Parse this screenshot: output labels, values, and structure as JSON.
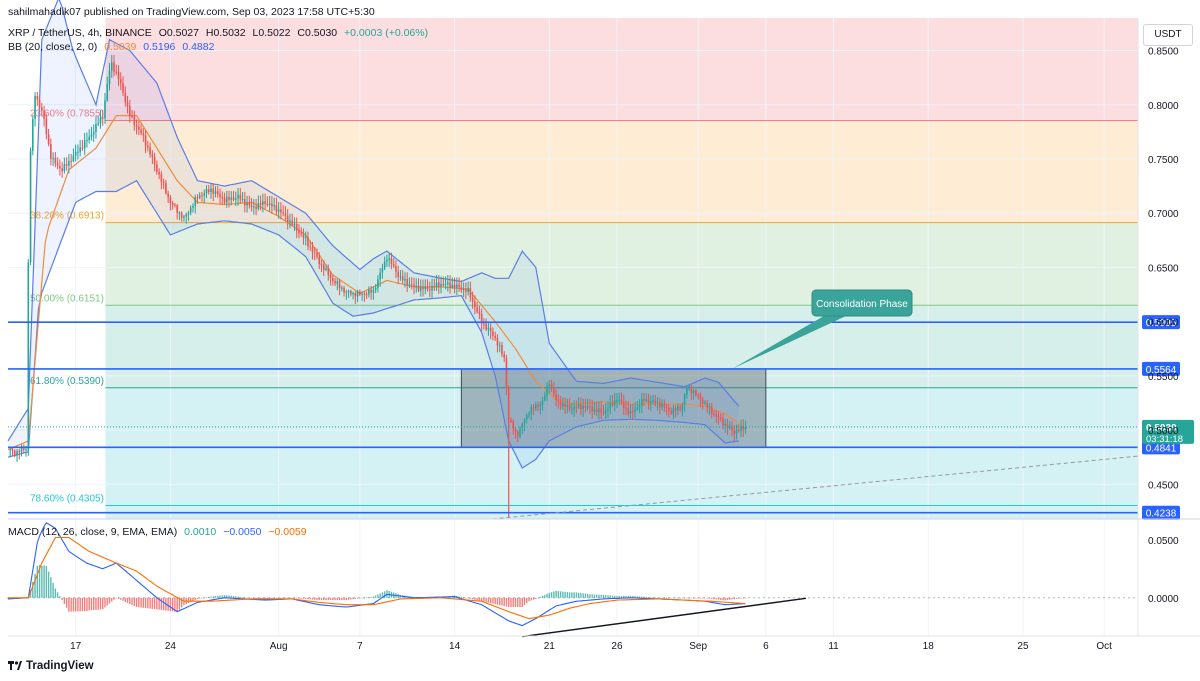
{
  "publisher_line": "sahilmahadik07 published on TradingView.com, Sep 03, 2023 17:58 UTC+5:30",
  "legend": {
    "symbol": "XRP / TetherUS, 4h, BINANCE",
    "ohlc": [
      "O0.5027",
      "H0.5032",
      "L0.5022",
      "C0.5030",
      "+0.0003 (+0.06%)"
    ],
    "bb_label": "BB (20, close, 2, 0)",
    "bb_values": [
      "0.5039",
      "0.5196",
      "0.4882"
    ],
    "macd_label": "MACD (12, 26, close, 9, EMA, EMA)",
    "macd_values": [
      "0.0010",
      "−0.0050",
      "−0.0059"
    ]
  },
  "currency_button": "USDT",
  "branding": "TradingView",
  "colors": {
    "up": "#26a69a",
    "down": "#ef5350",
    "support_line": "#2962ff",
    "bb_band": "#5b7ee5",
    "bb_basis": "#f08c3a",
    "macd_line": "#2962ff",
    "signal_line": "#ff6d00",
    "callout": "#3aa39a"
  },
  "chart_data": {
    "type": "candlestick",
    "symbol": "XRP / TetherUS",
    "interval": "4h",
    "exchange": "BINANCE",
    "price_axis": {
      "ticks": [
        0.85,
        0.8,
        0.75,
        0.7,
        0.65,
        0.6,
        0.55,
        0.5,
        0.45
      ],
      "tick_labels": [
        "0.8500",
        "0.8000",
        "0.7500",
        "0.7000",
        "0.6500",
        "0.6000",
        "0.5500",
        "0.5000",
        "0.4500"
      ],
      "range": [
        0.418,
        0.88
      ]
    },
    "time_axis": {
      "labels": [
        "17",
        "24",
        "Aug",
        "7",
        "14",
        "21",
        "26",
        "Sep",
        "6",
        "11",
        "18",
        "25",
        "Oct"
      ],
      "days": [
        17,
        24,
        32,
        38,
        45,
        52,
        57,
        63,
        68,
        73,
        80,
        87,
        93
      ],
      "start_day": 12,
      "end_day": 95.5
    },
    "price_waypoints": [
      [
        12.0,
        0.482
      ],
      [
        12.5,
        0.479
      ],
      [
        13.4,
        0.484
      ],
      [
        13.55,
        0.74
      ],
      [
        14.0,
        0.81
      ],
      [
        14.6,
        0.79
      ],
      [
        15.2,
        0.75
      ],
      [
        16.0,
        0.74
      ],
      [
        17.0,
        0.755
      ],
      [
        18.0,
        0.77
      ],
      [
        19.0,
        0.79
      ],
      [
        19.6,
        0.84
      ],
      [
        20.3,
        0.82
      ],
      [
        21.0,
        0.79
      ],
      [
        22.0,
        0.77
      ],
      [
        23.0,
        0.74
      ],
      [
        24.0,
        0.71
      ],
      [
        25.0,
        0.695
      ],
      [
        26.0,
        0.715
      ],
      [
        27.0,
        0.722
      ],
      [
        28.0,
        0.712
      ],
      [
        29.0,
        0.715
      ],
      [
        30.0,
        0.705
      ],
      [
        31.0,
        0.71
      ],
      [
        32.0,
        0.703
      ],
      [
        33.0,
        0.69
      ],
      [
        34.0,
        0.675
      ],
      [
        35.0,
        0.655
      ],
      [
        36.0,
        0.638
      ],
      [
        37.0,
        0.627
      ],
      [
        38.0,
        0.625
      ],
      [
        39.0,
        0.628
      ],
      [
        40.0,
        0.66
      ],
      [
        41.0,
        0.64
      ],
      [
        42.0,
        0.632
      ],
      [
        43.0,
        0.63
      ],
      [
        44.0,
        0.635
      ],
      [
        45.0,
        0.633
      ],
      [
        46.0,
        0.628
      ],
      [
        47.0,
        0.6
      ],
      [
        48.0,
        0.585
      ],
      [
        48.7,
        0.565
      ],
      [
        49.0,
        0.51
      ],
      [
        49.6,
        0.495
      ],
      [
        50.5,
        0.518
      ],
      [
        51.5,
        0.526
      ],
      [
        52.0,
        0.545
      ],
      [
        52.5,
        0.527
      ],
      [
        53.5,
        0.52
      ],
      [
        54.5,
        0.522
      ],
      [
        56.0,
        0.516
      ],
      [
        57.0,
        0.529
      ],
      [
        58.0,
        0.515
      ],
      [
        59.0,
        0.528
      ],
      [
        60.0,
        0.525
      ],
      [
        61.0,
        0.517
      ],
      [
        61.8,
        0.522
      ],
      [
        62.2,
        0.541
      ],
      [
        63.0,
        0.531
      ],
      [
        64.0,
        0.517
      ],
      [
        65.0,
        0.505
      ],
      [
        65.6,
        0.498
      ],
      [
        66.5,
        0.503
      ]
    ],
    "bollinger_bands": {
      "period": 20,
      "source": "close",
      "stddev": 2,
      "offset": 0,
      "basis": 0.5039,
      "upper": 0.5196,
      "lower": 0.4882,
      "band_waypoints_upper": [
        [
          12.0,
          0.49
        ],
        [
          13.5,
          0.52
        ],
        [
          14.5,
          0.86
        ],
        [
          15.8,
          0.9
        ],
        [
          16.8,
          0.85
        ],
        [
          18.5,
          0.8
        ],
        [
          19.5,
          0.86
        ],
        [
          21.0,
          0.85
        ],
        [
          23.0,
          0.82
        ],
        [
          24.5,
          0.77
        ],
        [
          26.0,
          0.73
        ],
        [
          28.0,
          0.725
        ],
        [
          30.0,
          0.73
        ],
        [
          32.0,
          0.715
        ],
        [
          34.0,
          0.7
        ],
        [
          36.0,
          0.67
        ],
        [
          38.0,
          0.648
        ],
        [
          39.0,
          0.658
        ],
        [
          40.0,
          0.665
        ],
        [
          42.0,
          0.645
        ],
        [
          44.0,
          0.64
        ],
        [
          45.5,
          0.637
        ],
        [
          47.0,
          0.645
        ],
        [
          48.0,
          0.64
        ],
        [
          49.0,
          0.64
        ],
        [
          50.0,
          0.665
        ],
        [
          51.0,
          0.65
        ],
        [
          52.0,
          0.58
        ],
        [
          54.0,
          0.545
        ],
        [
          56.0,
          0.543
        ],
        [
          58.0,
          0.548
        ],
        [
          60.0,
          0.544
        ],
        [
          62.0,
          0.54
        ],
        [
          63.5,
          0.548
        ],
        [
          64.5,
          0.544
        ],
        [
          66.0,
          0.522
        ]
      ],
      "band_waypoints_lower": [
        [
          12.0,
          0.475
        ],
        [
          13.5,
          0.48
        ],
        [
          14.3,
          0.62
        ],
        [
          15.5,
          0.66
        ],
        [
          17.0,
          0.71
        ],
        [
          18.5,
          0.72
        ],
        [
          20.0,
          0.72
        ],
        [
          21.5,
          0.73
        ],
        [
          23.0,
          0.7
        ],
        [
          24.0,
          0.68
        ],
        [
          26.0,
          0.69
        ],
        [
          28.0,
          0.693
        ],
        [
          30.0,
          0.69
        ],
        [
          32.0,
          0.68
        ],
        [
          34.0,
          0.66
        ],
        [
          36.0,
          0.617
        ],
        [
          37.5,
          0.605
        ],
        [
          39.0,
          0.608
        ],
        [
          40.0,
          0.612
        ],
        [
          42.0,
          0.62
        ],
        [
          44.0,
          0.622
        ],
        [
          45.5,
          0.624
        ],
        [
          47.0,
          0.59
        ],
        [
          48.0,
          0.55
        ],
        [
          49.0,
          0.49
        ],
        [
          50.0,
          0.465
        ],
        [
          51.0,
          0.473
        ],
        [
          52.0,
          0.49
        ],
        [
          54.0,
          0.503
        ],
        [
          56.0,
          0.509
        ],
        [
          58.0,
          0.51
        ],
        [
          60.0,
          0.509
        ],
        [
          62.0,
          0.507
        ],
        [
          63.5,
          0.505
        ],
        [
          65.0,
          0.488
        ],
        [
          66.0,
          0.49
        ]
      ],
      "basis_waypoints": [
        [
          12.0,
          0.482
        ],
        [
          13.5,
          0.49
        ],
        [
          14.8,
          0.68
        ],
        [
          16.5,
          0.74
        ],
        [
          18.5,
          0.76
        ],
        [
          20.0,
          0.79
        ],
        [
          21.5,
          0.79
        ],
        [
          23.0,
          0.76
        ],
        [
          24.5,
          0.73
        ],
        [
          26.0,
          0.71
        ],
        [
          28.0,
          0.708
        ],
        [
          30.0,
          0.71
        ],
        [
          32.0,
          0.697
        ],
        [
          34.0,
          0.68
        ],
        [
          36.0,
          0.643
        ],
        [
          38.0,
          0.626
        ],
        [
          40.0,
          0.638
        ],
        [
          42.0,
          0.632
        ],
        [
          44.0,
          0.632
        ],
        [
          46.0,
          0.63
        ],
        [
          48.0,
          0.6
        ],
        [
          49.5,
          0.575
        ],
        [
          51.0,
          0.545
        ],
        [
          52.5,
          0.528
        ],
        [
          54.0,
          0.524
        ],
        [
          56.0,
          0.526
        ],
        [
          58.0,
          0.524
        ],
        [
          60.0,
          0.524
        ],
        [
          62.0,
          0.524
        ],
        [
          63.5,
          0.522
        ],
        [
          65.0,
          0.515
        ],
        [
          66.0,
          0.506
        ]
      ]
    },
    "fibonacci_levels": [
      {
        "label": "23.60% (0.7855)",
        "value": 0.7855
      },
      {
        "label": "38.20% (0.6913)",
        "value": 0.6913
      },
      {
        "label": "50.00% (0.6151)",
        "value": 0.6151
      },
      {
        "label": "61.80% (0.5390)",
        "value": 0.539
      },
      {
        "label": "78.60% (0.4305)",
        "value": 0.4305
      }
    ],
    "fib_zone_start_day": 19.2,
    "fib_zones": [
      {
        "from": 0.88,
        "to": 0.7855,
        "color": "#fbd7da"
      },
      {
        "from": 0.7855,
        "to": 0.6913,
        "color": "#feeacc"
      },
      {
        "from": 0.6913,
        "to": 0.6151,
        "color": "#dcefdc"
      },
      {
        "from": 0.6151,
        "to": 0.539,
        "color": "#cfece6"
      },
      {
        "from": 0.539,
        "to": 0.418,
        "color": "#cdf0f2"
      }
    ],
    "horizontal_levels": [
      {
        "value": 0.5995,
        "label": "0.5995"
      },
      {
        "value": 0.5564,
        "label": "0.5564"
      },
      {
        "value": 0.4841,
        "label": "0.4841"
      },
      {
        "value": 0.4238,
        "label": "0.4238"
      }
    ],
    "current_price": {
      "value": 0.503,
      "label": "0.5030",
      "countdown": "03:31:18"
    },
    "consolidation_box": {
      "from_day": 45.5,
      "to_day": 68.0,
      "high": 0.5564,
      "low": 0.4841
    },
    "annotation": {
      "text": "Consolidation Phase",
      "points_to_day": 65.5,
      "points_to_price": 0.5564
    },
    "trendline_dashed": {
      "from": [
        47.8,
        0.418
      ],
      "to": [
        95.5,
        0.476
      ]
    },
    "wick_low": {
      "day": 49.0,
      "value": 0.419
    },
    "macd": {
      "fast": 12,
      "slow": 26,
      "source": "close",
      "signal": 9,
      "macd": 0.001,
      "signal_value": -0.005,
      "histogram": -0.0059,
      "axis_ticks": [
        0.05,
        0.0
      ],
      "axis_labels": [
        "0.0500",
        "0.0000"
      ],
      "range": [
        -0.033,
        0.068
      ],
      "macd_waypoints": [
        [
          12.0,
          -0.001
        ],
        [
          13.5,
          0.0
        ],
        [
          14.2,
          0.05
        ],
        [
          14.8,
          0.065
        ],
        [
          15.5,
          0.06
        ],
        [
          16.5,
          0.04
        ],
        [
          17.8,
          0.03
        ],
        [
          19.0,
          0.025
        ],
        [
          20.0,
          0.03
        ],
        [
          21.5,
          0.015
        ],
        [
          23.0,
          0.0
        ],
        [
          24.5,
          -0.012
        ],
        [
          26.0,
          -0.004
        ],
        [
          28.0,
          0.0
        ],
        [
          31.0,
          -0.002
        ],
        [
          33.0,
          -0.001
        ],
        [
          35.0,
          -0.006
        ],
        [
          37.0,
          -0.008
        ],
        [
          39.0,
          -0.005
        ],
        [
          40.0,
          0.003
        ],
        [
          42.0,
          0.0
        ],
        [
          45.0,
          0.001
        ],
        [
          47.0,
          -0.006
        ],
        [
          49.0,
          -0.02
        ],
        [
          50.0,
          -0.024
        ],
        [
          51.0,
          -0.018
        ],
        [
          52.5,
          -0.007
        ],
        [
          54.0,
          -0.003
        ],
        [
          56.0,
          -0.001
        ],
        [
          58.0,
          0.0
        ],
        [
          60.0,
          -0.001
        ],
        [
          62.0,
          -0.002
        ],
        [
          63.5,
          -0.003
        ],
        [
          65.0,
          -0.006
        ],
        [
          66.5,
          -0.005
        ]
      ],
      "signal_waypoints": [
        [
          12.0,
          0.0
        ],
        [
          13.5,
          0.0
        ],
        [
          14.5,
          0.03
        ],
        [
          15.5,
          0.052
        ],
        [
          16.5,
          0.052
        ],
        [
          18.0,
          0.04
        ],
        [
          20.0,
          0.03
        ],
        [
          21.5,
          0.023
        ],
        [
          23.0,
          0.01
        ],
        [
          25.0,
          -0.003
        ],
        [
          27.0,
          -0.003
        ],
        [
          30.0,
          -0.001
        ],
        [
          33.0,
          -0.001
        ],
        [
          35.0,
          -0.004
        ],
        [
          37.0,
          -0.006
        ],
        [
          39.0,
          -0.006
        ],
        [
          41.0,
          -0.001
        ],
        [
          44.0,
          0.0
        ],
        [
          47.0,
          -0.003
        ],
        [
          49.0,
          -0.012
        ],
        [
          50.5,
          -0.018
        ],
        [
          52.0,
          -0.015
        ],
        [
          53.5,
          -0.009
        ],
        [
          55.0,
          -0.005
        ],
        [
          57.0,
          -0.002
        ],
        [
          60.0,
          -0.001
        ],
        [
          62.0,
          -0.002
        ],
        [
          64.0,
          -0.003
        ],
        [
          66.5,
          -0.005
        ]
      ],
      "divergence_line": {
        "from": [
          50.0,
          -0.0335
        ],
        "to": [
          68.0,
          -0.0005
        ]
      }
    }
  }
}
